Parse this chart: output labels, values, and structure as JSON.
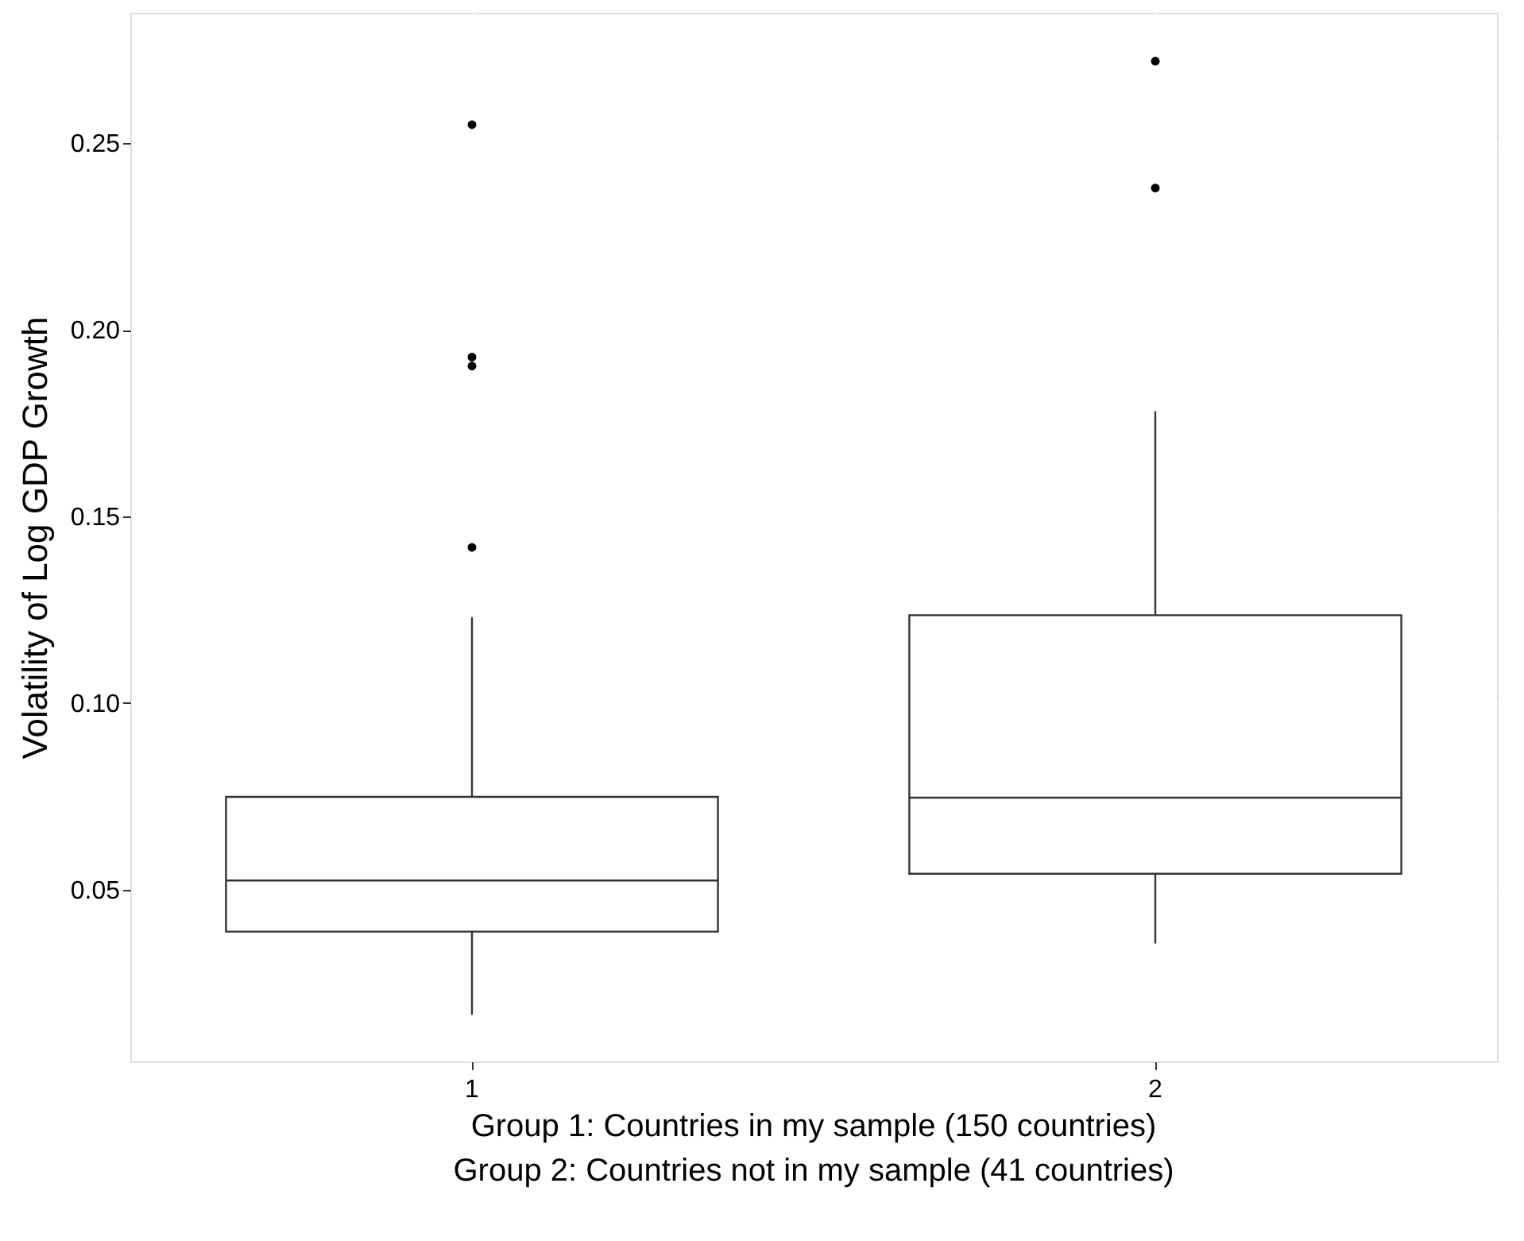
{
  "chart_data": {
    "type": "box",
    "ylabel": "Volatility of Log GDP Growth",
    "categories": [
      "1",
      "2"
    ],
    "boxes": [
      {
        "low": 0.0164,
        "q1": 0.0387,
        "median": 0.0524,
        "q3": 0.0748,
        "high": 0.123,
        "outliers": [
          0.255,
          0.1927,
          0.1903,
          0.1417
        ]
      },
      {
        "low": 0.0355,
        "q1": 0.0542,
        "median": 0.0746,
        "q3": 0.1235,
        "high": 0.1782,
        "outliers": [
          0.272,
          0.238
        ]
      }
    ],
    "ylim": [
      0.0039,
      0.285
    ],
    "yticks": [
      0.05,
      {
        "value": 0.1,
        "label": "0.10"
      },
      0.15,
      {
        "value": 0.2,
        "label": "0.20"
      },
      0.25
    ],
    "grid": true,
    "annotations": [
      "Group 1: Countries in my sample (150 countries)",
      "Group 2: Countries not in my sample (41 countries)"
    ]
  }
}
